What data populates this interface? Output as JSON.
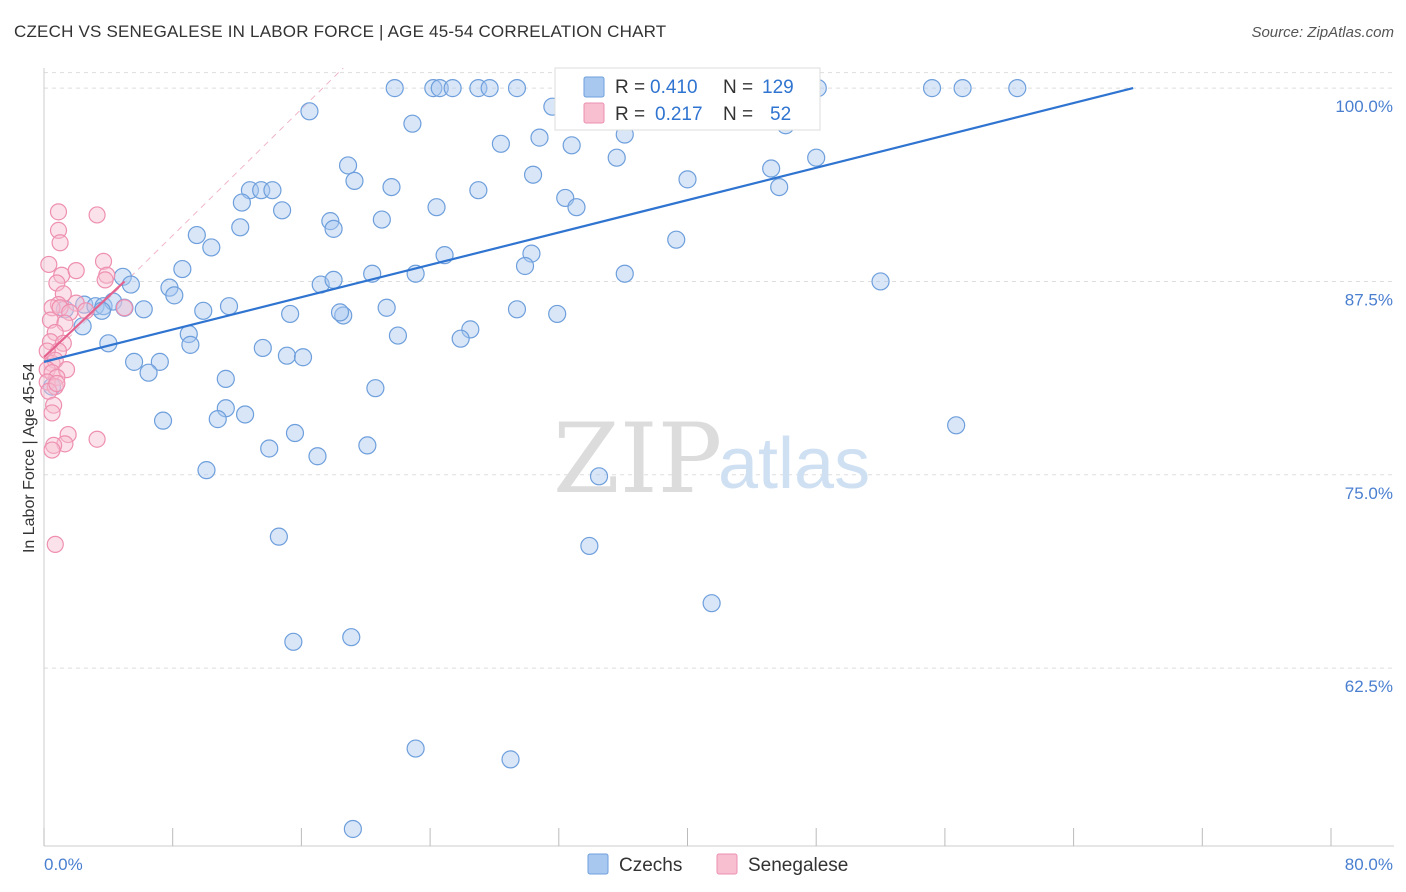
{
  "header": {
    "title": "CZECH VS SENEGALESE IN LABOR FORCE | AGE 45-54 CORRELATION CHART",
    "source": "Source: ZipAtlas.com"
  },
  "watermark": {
    "zip": "ZIP",
    "atlas": "atlas"
  },
  "legend_top": {
    "rows": [
      {
        "r_label": "R = ",
        "r_value": "0.410",
        "n_label": "N = ",
        "n_value": "129"
      },
      {
        "r_label": "R = ",
        "r_value": "0.217",
        "n_label": "N = ",
        "n_value": "52"
      }
    ]
  },
  "legend_bottom": {
    "items": [
      "Czechs",
      "Senegalese"
    ]
  },
  "colors": {
    "blue_fill": "#a9c8ef",
    "blue_stroke": "#6e9fdc",
    "blue_line": "#2f74d0",
    "pink_fill": "#f7bfd0",
    "pink_stroke": "#ee8fb0",
    "pink_line": "#e4628e",
    "accent_text": "#4a7fd0",
    "grid": "#dddddd"
  },
  "chart_data": {
    "type": "scatter",
    "title": "CZECH VS SENEGALESE IN LABOR FORCE | AGE 45-54 CORRELATION CHART",
    "xlabel": "",
    "ylabel": "In Labor Force | Age 45-54",
    "xlim": [
      0,
      80
    ],
    "ylim": [
      51.0,
      101.3
    ],
    "x_tick_labels": [
      "0.0%",
      "80.0%"
    ],
    "y_ticks": [
      62.5,
      75.0,
      87.5,
      100.0
    ],
    "y_tick_labels": [
      "62.5%",
      "75.0%",
      "87.5%",
      "100.0%"
    ],
    "series": [
      {
        "name": "Czechs",
        "r": 0.41,
        "n": 129,
        "trend": [
          [
            0,
            82.3
          ],
          [
            67.7,
            100.0
          ]
        ],
        "points": [
          [
            21.8,
            100
          ],
          [
            24.2,
            100
          ],
          [
            24.6,
            100
          ],
          [
            25.4,
            100
          ],
          [
            27.0,
            100
          ],
          [
            27.7,
            100
          ],
          [
            29.4,
            100
          ],
          [
            33.0,
            100
          ],
          [
            33.6,
            100
          ],
          [
            34.1,
            100
          ],
          [
            40.7,
            100
          ],
          [
            41.7,
            100
          ],
          [
            45.0,
            100
          ],
          [
            47.7,
            100
          ],
          [
            48.1,
            100
          ],
          [
            55.2,
            100
          ],
          [
            57.1,
            100
          ],
          [
            60.5,
            100
          ],
          [
            16.5,
            98.5
          ],
          [
            31.6,
            98.8
          ],
          [
            22.9,
            97.7
          ],
          [
            28.4,
            96.4
          ],
          [
            30.8,
            96.8
          ],
          [
            36.1,
            97.0
          ],
          [
            32.8,
            96.3
          ],
          [
            46.1,
            97.6
          ],
          [
            35.6,
            95.5
          ],
          [
            48.0,
            95.5
          ],
          [
            18.9,
            95.0
          ],
          [
            45.2,
            94.8
          ],
          [
            19.3,
            94.0
          ],
          [
            30.4,
            94.4
          ],
          [
            40.0,
            94.1
          ],
          [
            21.6,
            93.6
          ],
          [
            27.0,
            93.4
          ],
          [
            32.4,
            92.9
          ],
          [
            12.8,
            93.4
          ],
          [
            13.5,
            93.4
          ],
          [
            14.2,
            93.4
          ],
          [
            45.7,
            93.6
          ],
          [
            12.3,
            92.6
          ],
          [
            14.8,
            92.1
          ],
          [
            24.4,
            92.3
          ],
          [
            33.1,
            92.3
          ],
          [
            17.8,
            91.4
          ],
          [
            21.0,
            91.5
          ],
          [
            12.2,
            91.0
          ],
          [
            18.0,
            90.9
          ],
          [
            9.5,
            90.5
          ],
          [
            10.4,
            89.7
          ],
          [
            39.3,
            90.2
          ],
          [
            24.9,
            89.2
          ],
          [
            30.3,
            89.3
          ],
          [
            29.9,
            88.5
          ],
          [
            8.6,
            88.3
          ],
          [
            23.1,
            88.0
          ],
          [
            20.4,
            88.0
          ],
          [
            36.1,
            88.0
          ],
          [
            4.9,
            87.8
          ],
          [
            5.4,
            87.3
          ],
          [
            17.2,
            87.3
          ],
          [
            18.0,
            87.6
          ],
          [
            52.0,
            87.5
          ],
          [
            7.8,
            87.1
          ],
          [
            8.1,
            86.6
          ],
          [
            2.5,
            86.0
          ],
          [
            1.3,
            85.7
          ],
          [
            3.2,
            85.9
          ],
          [
            3.7,
            85.9
          ],
          [
            4.3,
            86.2
          ],
          [
            5.0,
            85.8
          ],
          [
            6.2,
            85.7
          ],
          [
            3.6,
            85.6
          ],
          [
            9.9,
            85.6
          ],
          [
            11.5,
            85.9
          ],
          [
            15.3,
            85.4
          ],
          [
            21.3,
            85.8
          ],
          [
            29.4,
            85.7
          ],
          [
            31.9,
            85.4
          ],
          [
            18.6,
            85.3
          ],
          [
            18.4,
            85.5
          ],
          [
            2.4,
            84.6
          ],
          [
            26.5,
            84.4
          ],
          [
            9.0,
            84.1
          ],
          [
            22.0,
            84.0
          ],
          [
            25.9,
            83.8
          ],
          [
            4.0,
            83.5
          ],
          [
            9.1,
            83.4
          ],
          [
            13.6,
            83.2
          ],
          [
            15.1,
            82.7
          ],
          [
            16.1,
            82.6
          ],
          [
            7.2,
            82.3
          ],
          [
            5.6,
            82.3
          ],
          [
            6.5,
            81.6
          ],
          [
            11.3,
            81.2
          ],
          [
            20.6,
            80.6
          ],
          [
            0.5,
            80.7
          ],
          [
            11.3,
            79.3
          ],
          [
            10.8,
            78.6
          ],
          [
            12.5,
            78.9
          ],
          [
            7.4,
            78.5
          ],
          [
            56.7,
            78.2
          ],
          [
            15.6,
            77.7
          ],
          [
            20.1,
            76.9
          ],
          [
            14.0,
            76.7
          ],
          [
            17.0,
            76.2
          ],
          [
            10.1,
            75.3
          ],
          [
            34.5,
            74.9
          ],
          [
            14.6,
            71.0
          ],
          [
            33.9,
            70.4
          ],
          [
            41.5,
            66.7
          ],
          [
            15.5,
            64.2
          ],
          [
            19.1,
            64.5
          ],
          [
            23.1,
            57.3
          ],
          [
            29.0,
            56.6
          ],
          [
            19.2,
            52.1
          ]
        ]
      },
      {
        "name": "Senegalese",
        "r": 0.217,
        "n": 52,
        "trend": [
          [
            0,
            82.6
          ],
          [
            5.0,
            87.5
          ]
        ],
        "points": [
          [
            0.9,
            92.0
          ],
          [
            3.3,
            91.8
          ],
          [
            0.9,
            90.8
          ],
          [
            1.0,
            90.0
          ],
          [
            3.7,
            88.8
          ],
          [
            0.3,
            88.6
          ],
          [
            1.1,
            87.9
          ],
          [
            2.0,
            88.2
          ],
          [
            3.9,
            87.9
          ],
          [
            0.8,
            87.4
          ],
          [
            3.8,
            87.6
          ],
          [
            1.2,
            86.7
          ],
          [
            0.9,
            86.0
          ],
          [
            2.0,
            86.1
          ],
          [
            0.5,
            85.8
          ],
          [
            1.0,
            85.8
          ],
          [
            1.6,
            85.5
          ],
          [
            2.6,
            85.6
          ],
          [
            5.0,
            85.8
          ],
          [
            0.4,
            85.0
          ],
          [
            1.3,
            84.8
          ],
          [
            0.7,
            84.2
          ],
          [
            0.4,
            83.6
          ],
          [
            1.2,
            83.5
          ],
          [
            0.9,
            83.0
          ],
          [
            0.2,
            83.0
          ],
          [
            0.5,
            82.2
          ],
          [
            0.7,
            82.4
          ],
          [
            0.2,
            81.8
          ],
          [
            0.5,
            81.6
          ],
          [
            1.4,
            81.8
          ],
          [
            0.8,
            81.3
          ],
          [
            0.2,
            81.0
          ],
          [
            0.7,
            80.7
          ],
          [
            0.3,
            80.4
          ],
          [
            0.8,
            80.9
          ],
          [
            0.6,
            79.5
          ],
          [
            0.5,
            79.0
          ],
          [
            1.5,
            77.6
          ],
          [
            3.3,
            77.3
          ],
          [
            1.3,
            77.0
          ],
          [
            0.6,
            76.9
          ],
          [
            0.5,
            76.6
          ],
          [
            0.7,
            70.5
          ]
        ]
      }
    ]
  }
}
